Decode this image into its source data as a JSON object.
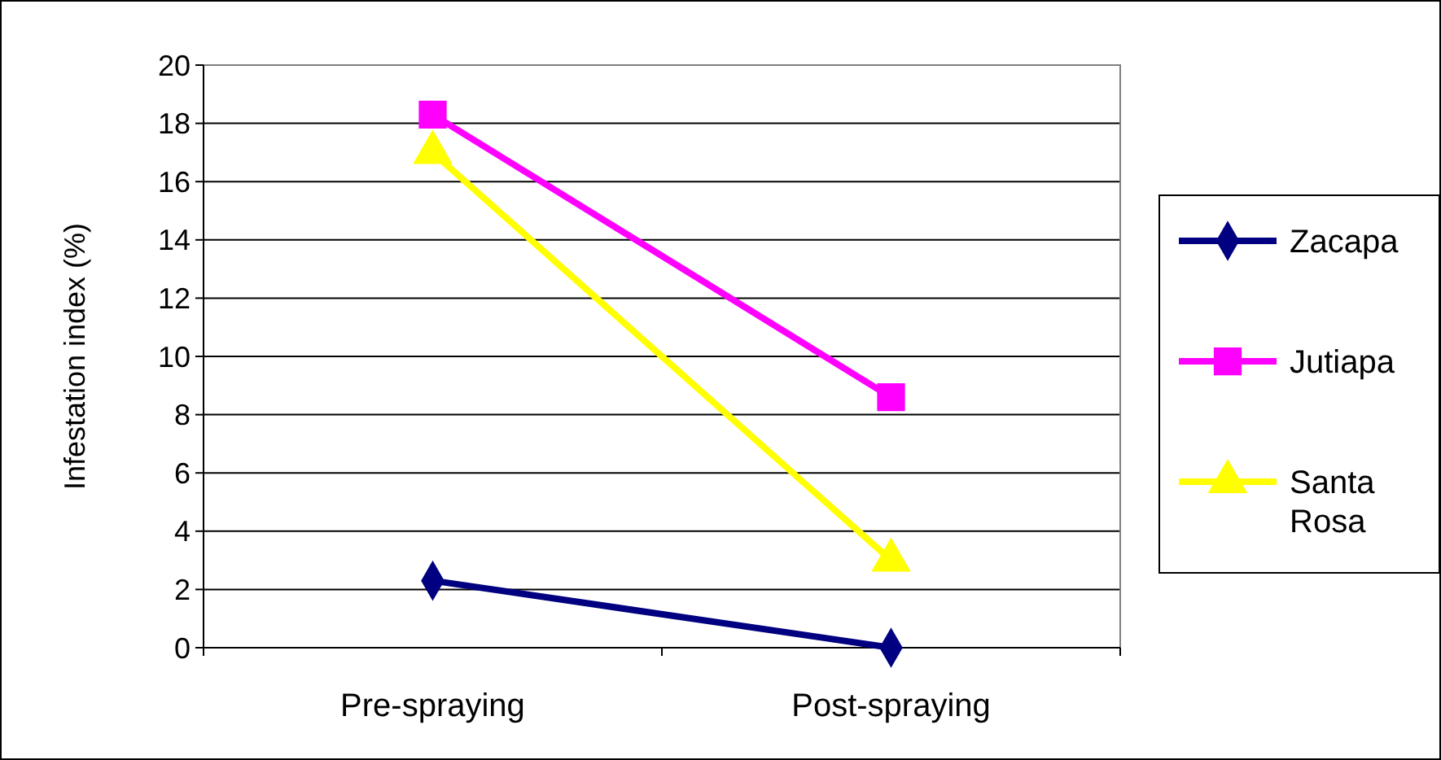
{
  "chart_data": {
    "type": "line",
    "ylabel": "Infestation index (%)",
    "categories": [
      "Pre-spraying",
      "Post-spraying"
    ],
    "series": [
      {
        "name": "Zacapa",
        "color": "#000080",
        "marker": "diamond",
        "values": [
          2.3,
          0
        ]
      },
      {
        "name": "Jutiapa",
        "color": "#ff00ff",
        "marker": "square",
        "values": [
          18.3,
          8.6
        ]
      },
      {
        "name": "Santa Rosa",
        "color": "#ffff00",
        "marker": "triangle",
        "values": [
          17,
          3
        ]
      }
    ],
    "ylim": [
      0,
      20
    ],
    "yticks": [
      0,
      2,
      4,
      6,
      8,
      10,
      12,
      14,
      16,
      18,
      20
    ],
    "grid": "y",
    "legend": "right"
  }
}
